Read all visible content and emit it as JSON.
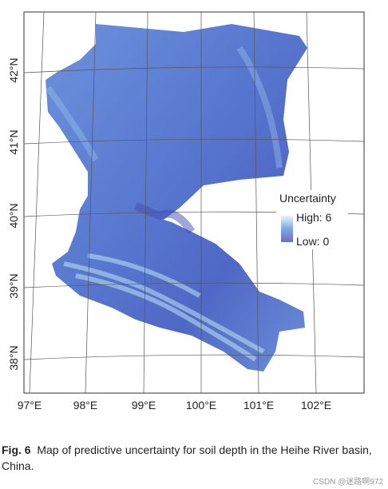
{
  "map": {
    "latitude_labels": [
      "42°N",
      "41°N",
      "40°N",
      "39°N",
      "38°N"
    ],
    "longitude_labels": [
      "97°E",
      "98°E",
      "99°E",
      "100°E",
      "101°E",
      "102°E"
    ],
    "legend": {
      "title": "Uncertainty",
      "high_label": "High: 6",
      "low_label": "Low: 0"
    }
  },
  "caption": {
    "label": "Fig. 6",
    "text": "Map of predictive uncertainty for soil depth in the Heihe River basin, China."
  },
  "watermark": "CSDN @迷路啊972"
}
